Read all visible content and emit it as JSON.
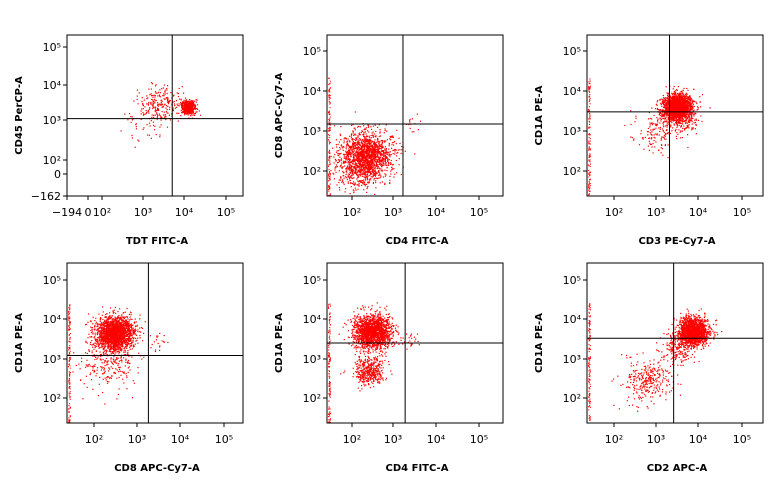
{
  "figure": {
    "point_color": "#ff0000"
  },
  "chart_data": [
    {
      "type": "scatter",
      "xlabel": "TDT FITC-A",
      "ylabel": "CD45 PerCP-A",
      "x_scale": "biexponential",
      "y_scale": "biexponential",
      "xlim": [
        -194,
        100000
      ],
      "ylim": [
        -162,
        100000
      ],
      "x_ticks": [
        "−194",
        "0",
        "10²",
        "10³",
        "10⁴",
        "10⁵"
      ],
      "y_ticks": [
        "10⁵",
        "10⁴",
        "10³",
        "10²",
        "0",
        "−162"
      ],
      "gate": {
        "x": 5000,
        "y": 1250
      },
      "clusters": [
        {
          "x": 2500,
          "y": 3000,
          "spread": 0.25,
          "count": 220
        },
        {
          "x": 12000,
          "y": 2500,
          "spread": 0.09,
          "count": 550
        },
        {
          "x": 1000,
          "y": 1100,
          "spread": 0.3,
          "count": 40
        }
      ]
    },
    {
      "type": "scatter",
      "xlabel": "CD4 FITC-A",
      "ylabel": "CD8 APC-Cy7-A",
      "x_scale": "log",
      "y_scale": "log",
      "xlim": [
        25,
        100000
      ],
      "ylim": [
        25,
        100000
      ],
      "x_ticks": [
        "10²",
        "10³",
        "10⁴",
        "10⁵"
      ],
      "y_ticks": [
        "10⁵",
        "10⁴",
        "10³",
        "10²"
      ],
      "gate": {
        "x": 1600,
        "y": 1500
      },
      "clusters": [
        {
          "x": 220,
          "y": 250,
          "spread": 0.3,
          "count": 1500
        },
        {
          "x": 120,
          "y": 120,
          "spread": 0.3,
          "count": 300
        },
        {
          "x": 2500,
          "y": 1500,
          "spread": 0.1,
          "count": 15
        }
      ]
    },
    {
      "type": "scatter",
      "xlabel": "CD3 PE-Cy7-A",
      "ylabel": "CD1A PE-A",
      "x_scale": "log",
      "y_scale": "log",
      "xlim": [
        25,
        100000
      ],
      "ylim": [
        25,
        100000
      ],
      "x_ticks": [
        "10²",
        "10³",
        "10⁴",
        "10⁵"
      ],
      "y_ticks": [
        "10⁵",
        "10⁴",
        "10³",
        "10²"
      ],
      "gate": {
        "x": 2000,
        "y": 3000
      },
      "clusters": [
        {
          "x": 3000,
          "y": 4000,
          "spread": 0.17,
          "count": 2100
        },
        {
          "x": 1000,
          "y": 1000,
          "spread": 0.25,
          "count": 150
        },
        {
          "x": 5000,
          "y": 1500,
          "spread": 0.15,
          "count": 60
        }
      ]
    },
    {
      "type": "scatter",
      "xlabel": "CD8 APC-Cy7-A",
      "ylabel": "CD1A PE-A",
      "x_scale": "log",
      "y_scale": "log",
      "xlim": [
        25,
        100000
      ],
      "ylim": [
        25,
        100000
      ],
      "x_ticks": [
        "10²",
        "10³",
        "10⁴",
        "10⁵"
      ],
      "y_ticks": [
        "10⁵",
        "10⁴",
        "10³",
        "10²"
      ],
      "gate": {
        "x": 1800,
        "y": 1200
      },
      "clusters": [
        {
          "x": 300,
          "y": 4500,
          "spread": 0.22,
          "count": 1900
        },
        {
          "x": 200,
          "y": 800,
          "spread": 0.35,
          "count": 250
        },
        {
          "x": 3000,
          "y": 3000,
          "spread": 0.12,
          "count": 20
        }
      ]
    },
    {
      "type": "scatter",
      "xlabel": "CD4 FITC-A",
      "ylabel": "CD1A PE-A",
      "x_scale": "log",
      "y_scale": "log",
      "xlim": [
        25,
        100000
      ],
      "ylim": [
        25,
        100000
      ],
      "x_ticks": [
        "10²",
        "10³",
        "10⁴",
        "10⁵"
      ],
      "y_ticks": [
        "10⁵",
        "10⁴",
        "10³",
        "10²"
      ],
      "gate": {
        "x": 1800,
        "y": 2500
      },
      "clusters": [
        {
          "x": 300,
          "y": 5000,
          "spread": 0.22,
          "count": 1700
        },
        {
          "x": 250,
          "y": 500,
          "spread": 0.18,
          "count": 400
        },
        {
          "x": 2500,
          "y": 3000,
          "spread": 0.12,
          "count": 20
        }
      ]
    },
    {
      "type": "scatter",
      "xlabel": "CD2 APC-A",
      "ylabel": "CD1A PE-A",
      "x_scale": "log",
      "y_scale": "log",
      "xlim": [
        25,
        100000
      ],
      "ylim": [
        25,
        100000
      ],
      "x_ticks": [
        "10²",
        "10³",
        "10⁴",
        "10⁵"
      ],
      "y_ticks": [
        "10⁵",
        "10⁴",
        "10³",
        "10²"
      ],
      "gate": {
        "x": 2500,
        "y": 3300
      },
      "clusters": [
        {
          "x": 7000,
          "y": 5000,
          "spread": 0.17,
          "count": 1700
        },
        {
          "x": 600,
          "y": 300,
          "spread": 0.28,
          "count": 300
        },
        {
          "x": 3000,
          "y": 2000,
          "spread": 0.2,
          "count": 200
        }
      ]
    }
  ]
}
